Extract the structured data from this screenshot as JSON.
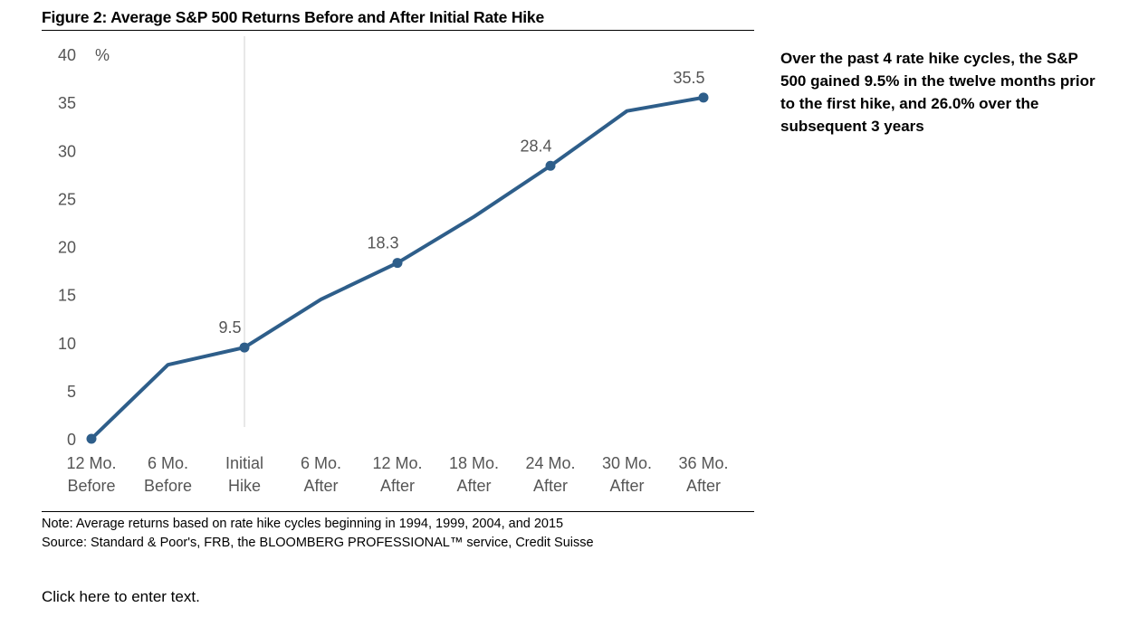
{
  "figure_title": "Figure 2: Average S&P 500 Returns Before and After Initial Rate Hike",
  "callout": "Over the past 4 rate hike cycles, the S&P 500 gained 9.5% in the twelve months prior to the first hike, and 26.0% over the subsequent 3 years",
  "note": "Note: Average returns based on rate hike cycles beginning in 1994, 1999, 2004, and 2015",
  "source": "Source: Standard & Poor's, FRB, the BLOOMBERG PROFESSIONAL™ service, Credit Suisse",
  "placeholder": "Click here to enter text.",
  "chart_data": {
    "type": "line",
    "title": "",
    "xlabel": "",
    "ylabel": "%",
    "categories": [
      [
        "12 Mo.",
        "Before"
      ],
      [
        "6 Mo.",
        "Before"
      ],
      [
        "Initial",
        "Hike"
      ],
      [
        "6 Mo.",
        "After"
      ],
      [
        "12 Mo.",
        "After"
      ],
      [
        "18 Mo.",
        "After"
      ],
      [
        "24 Mo.",
        "After"
      ],
      [
        "30 Mo.",
        "After"
      ],
      [
        "36 Mo.",
        "After"
      ]
    ],
    "values": [
      0,
      7.7,
      9.5,
      14.5,
      18.3,
      23.1,
      28.4,
      34.1,
      35.5
    ],
    "labeled_points": [
      {
        "index": 2,
        "label": "9.5"
      },
      {
        "index": 4,
        "label": "18.3"
      },
      {
        "index": 6,
        "label": "28.4"
      },
      {
        "index": 8,
        "label": "35.5"
      }
    ],
    "marker_points": [
      0,
      2,
      4,
      6,
      8
    ],
    "vertical_reference_index": 2,
    "ylim": [
      0,
      40
    ],
    "yticks": [
      0,
      5,
      10,
      15,
      20,
      25,
      30,
      35,
      40
    ],
    "grid": false,
    "line_color": "#2e5e8a",
    "axis_text_color": "#555555"
  }
}
